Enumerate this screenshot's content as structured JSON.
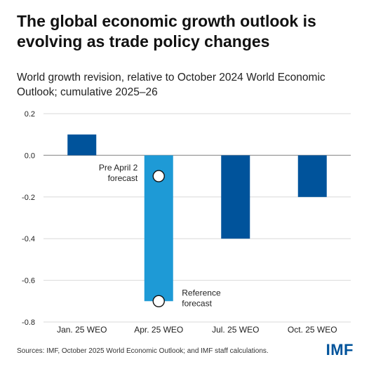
{
  "title": "The global economic growth outlook is evolving as trade policy changes",
  "subtitle": "World growth revision, relative to October 2024 World Economic Outlook; cumulative 2025–26",
  "chart_data": {
    "type": "bar",
    "categories": [
      "Jan. 25 WEO",
      "Apr. 25 WEO",
      "Jul. 25 WEO",
      "Oct. 25 WEO"
    ],
    "values": [
      0.1,
      -0.7,
      -0.4,
      -0.2
    ],
    "ylim": [
      -0.8,
      0.2
    ],
    "yticks": [
      0.2,
      0.0,
      -0.2,
      -0.4,
      -0.6,
      -0.8
    ],
    "ytick_labels": [
      "0.2",
      "0.0",
      "-0.2",
      "-0.4",
      "-0.6",
      "-0.8"
    ],
    "bar_colors": [
      "#00539b",
      "#1e9ad6",
      "#00539b",
      "#00539b"
    ],
    "markers": [
      {
        "category": "Apr. 25 WEO",
        "value": -0.1,
        "label_lines": [
          "Pre April 2",
          "forecast"
        ],
        "label_side": "left"
      },
      {
        "category": "Apr. 25 WEO",
        "value": -0.7,
        "label_lines": [
          "Reference",
          "forecast"
        ],
        "label_side": "right"
      }
    ],
    "grid": true
  },
  "source": "Sources: IMF, October 2025 World Economic Outlook; and IMF staff calculations.",
  "logo": "IMF"
}
